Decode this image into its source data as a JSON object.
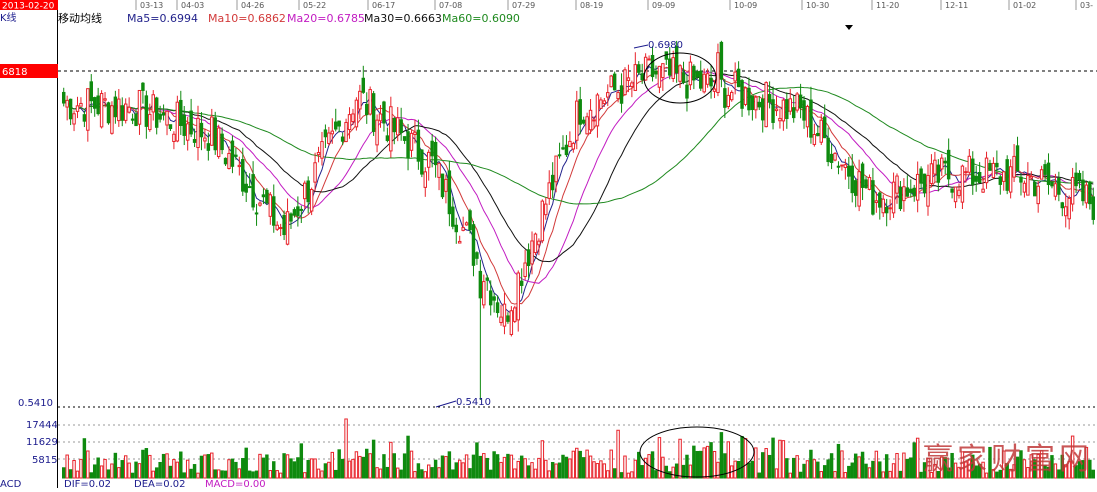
{
  "colors": {
    "up": "#e8222a",
    "down": "#0f8a0f",
    "ma5": "#23238c",
    "ma10": "#d23a3a",
    "ma20": "#c21cc2",
    "ma30": "#111111",
    "ma60": "#1f8a1f",
    "axis_text": "#1a1a8c",
    "label_bg": "#ff0000"
  },
  "header": {
    "kline_label": "K线",
    "panel_title": "移动均线",
    "ma5": "Ma5=0.6994",
    "ma10": "Ma10=0.6862",
    "ma20": "Ma20=0.6785",
    "ma30": "Ma30=0.6663",
    "ma60": "Ma60=0.6090",
    "start_date": "2013-02-20"
  },
  "price_axis": {
    "ref_label": "6818",
    "low_label": "0.5410"
  },
  "volume_axis": {
    "labels": [
      "17444",
      "11629",
      "5815"
    ]
  },
  "footer": {
    "macd_label": "ACD",
    "dif": "DIF=0.02",
    "dea": "DEA=0.02",
    "macd": "MACD=0.00"
  },
  "annotations": {
    "high": "0.6980",
    "low": "0.5410"
  },
  "watermark": "赢家财富网",
  "chart_data": {
    "type": "candlestick",
    "x_tick_labels": [
      "03-13",
      "04-03",
      "04-26",
      "05-22",
      "06-17",
      "07-08",
      "07-29",
      "08-19",
      "09-09",
      "10-09",
      "10-30",
      "11-20",
      "12-11",
      "01-02",
      "03-"
    ],
    "anchors": {
      "date": [
        "2013-02-20",
        "03-13",
        "04-03",
        "04-26",
        "05-22",
        "06-17",
        "07-08",
        "07-29",
        "08-19",
        "09-09",
        "10-09",
        "10-30",
        "11-20",
        "12-11",
        "01-02"
      ],
      "close_approx": [
        0.672,
        0.67,
        0.658,
        0.615,
        0.675,
        0.645,
        0.578,
        0.67,
        0.685,
        0.678,
        0.668,
        0.63,
        0.64,
        0.64,
        0.628
      ]
    },
    "price_extremes": {
      "high": 0.698,
      "low": 0.541
    },
    "volume_reference_levels": [
      17444,
      11629,
      5815
    ],
    "moving_averages_last": {
      "MA5": 0.6994,
      "MA10": 0.6862,
      "MA20": 0.6785,
      "MA30": 0.6663,
      "MA60": 0.609
    },
    "macd_last": {
      "DIF": 0.02,
      "DEA": 0.02,
      "MACD": 0.0
    }
  }
}
